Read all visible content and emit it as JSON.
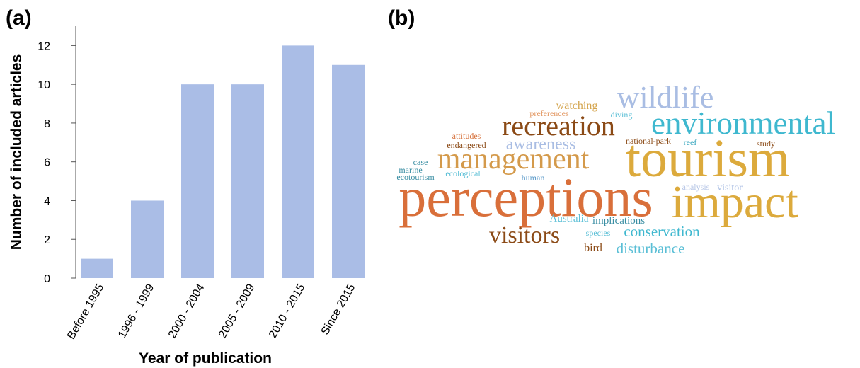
{
  "panel_labels": {
    "a": "(a)",
    "b": "(b)"
  },
  "chart_data": [
    {
      "type": "bar",
      "categories": [
        "Before 1995",
        "1996 - 1999",
        "2000 - 2004",
        "2005 - 2009",
        "2010 - 2015",
        "Since 2015"
      ],
      "values": [
        1,
        4,
        10,
        10,
        12,
        11
      ],
      "title": "",
      "xlabel": "Year of publication",
      "ylabel": "Number of included articles",
      "ylim": [
        0,
        13
      ],
      "yticks": [
        0,
        2,
        4,
        6,
        8,
        10,
        12
      ],
      "grid": false,
      "bar_color": "#aabde6"
    },
    {
      "type": "word_cloud",
      "words": [
        {
          "text": "wildlife",
          "color": "#a9bde3"
        },
        {
          "text": "watching",
          "color": "#d4a44c"
        },
        {
          "text": "diving",
          "color": "#5bbfd6"
        },
        {
          "text": "preferences",
          "color": "#e39a66"
        },
        {
          "text": "environmental",
          "color": "#3fb8cf"
        },
        {
          "text": "recreation",
          "color": "#8b4a16"
        },
        {
          "text": "attitudes",
          "color": "#d7743f"
        },
        {
          "text": "national-park",
          "color": "#8b4a16"
        },
        {
          "text": "reef",
          "color": "#3aa7bf"
        },
        {
          "text": "study",
          "color": "#8b4a16"
        },
        {
          "text": "endangered",
          "color": "#8b4a16"
        },
        {
          "text": "awareness",
          "color": "#a9bde3"
        },
        {
          "text": "management",
          "color": "#d49a4b"
        },
        {
          "text": "tourism",
          "color": "#dcaa3c"
        },
        {
          "text": "case",
          "color": "#3a8ea3"
        },
        {
          "text": "marine",
          "color": "#3a8ea3"
        },
        {
          "text": "ecological",
          "color": "#5bbfd6"
        },
        {
          "text": "ecotourism",
          "color": "#3a8ea3"
        },
        {
          "text": "human",
          "color": "#5b9ac9"
        },
        {
          "text": "analysis",
          "color": "#b7c6e6"
        },
        {
          "text": "visitor",
          "color": "#a9bde3"
        },
        {
          "text": "perceptions",
          "color": "#d96f3a"
        },
        {
          "text": "impact",
          "color": "#dcaa3c"
        },
        {
          "text": "Australia",
          "color": "#5bbfd6"
        },
        {
          "text": "implications",
          "color": "#3a8ea3"
        },
        {
          "text": "visitors",
          "color": "#8b4a16"
        },
        {
          "text": "species",
          "color": "#5bbfd6"
        },
        {
          "text": "conservation",
          "color": "#3fb8cf"
        },
        {
          "text": "bird",
          "color": "#8b4a16"
        },
        {
          "text": "disturbance",
          "color": "#5bbfd6"
        }
      ]
    }
  ]
}
